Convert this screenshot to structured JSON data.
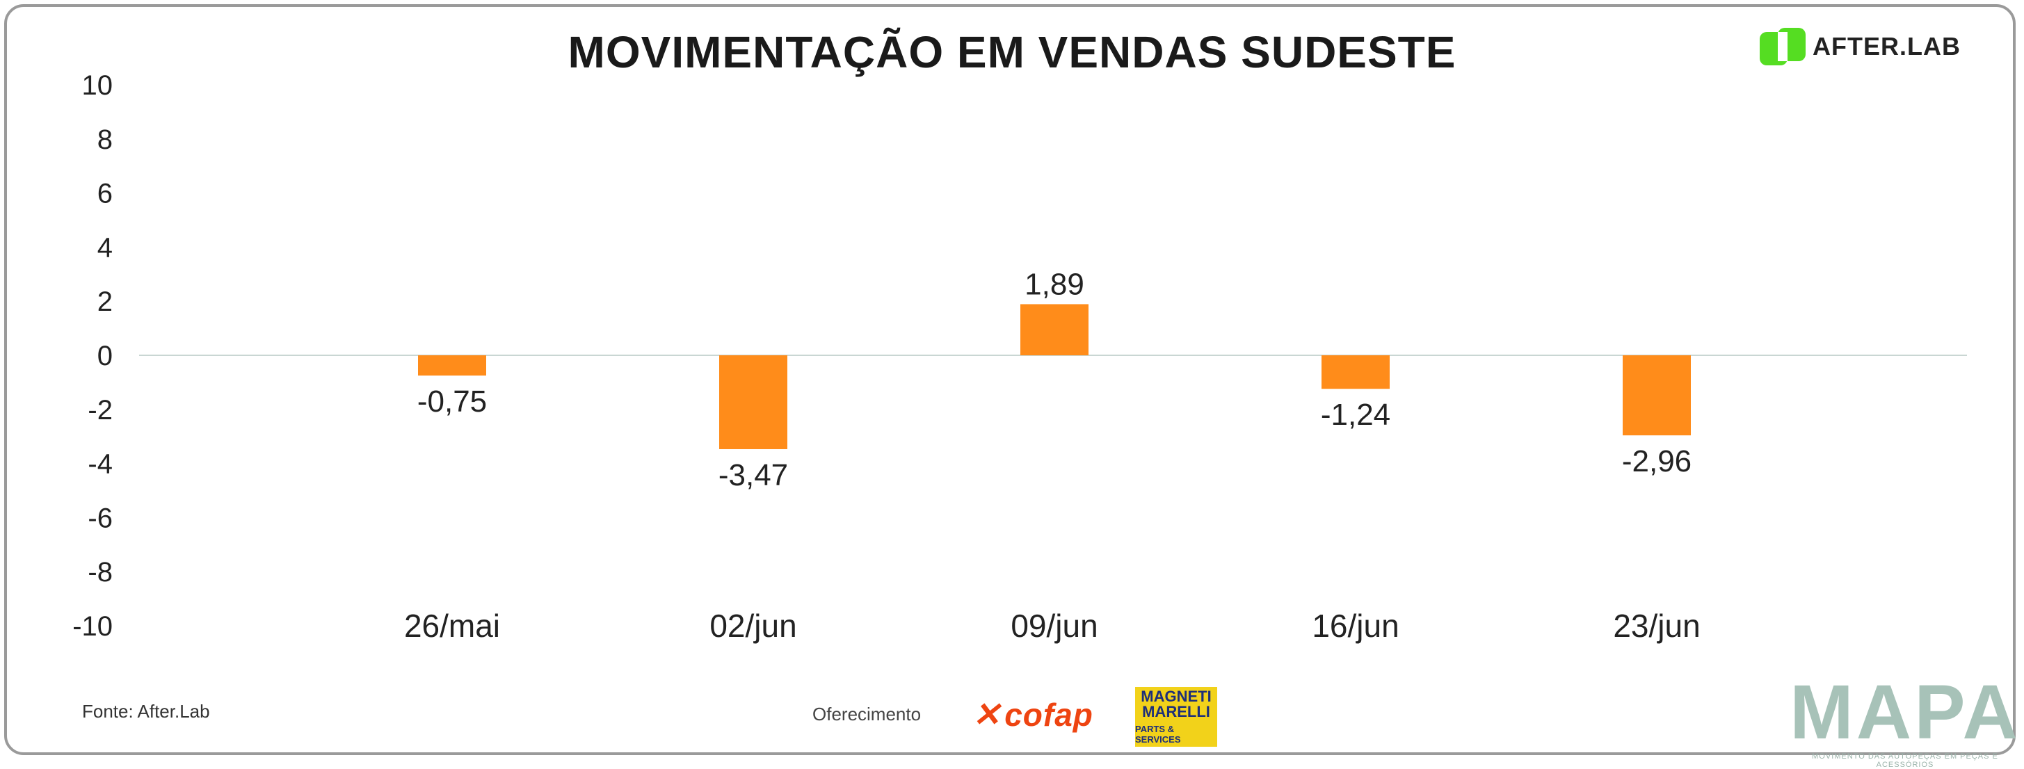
{
  "chart_data": {
    "type": "bar",
    "title": "MOVIMENTAÇÃO EM VENDAS SUDESTE",
    "categories": [
      "26/mai",
      "02/jun",
      "09/jun",
      "16/jun",
      "23/jun"
    ],
    "values": [
      -0.75,
      -3.47,
      1.89,
      -1.24,
      -2.96
    ],
    "value_labels": [
      "-0,75",
      "-3,47",
      "1,89",
      "-1,24",
      "-2,96"
    ],
    "ylim": [
      -10,
      10
    ],
    "yticks": [
      "10",
      "8",
      "6",
      "4",
      "2",
      "0",
      "-2",
      "-4",
      "-6",
      "-8",
      "-10"
    ],
    "xlabel": "",
    "ylabel": "",
    "bar_color": "#ff8c1a",
    "grid": false,
    "legend": "none"
  },
  "brand": {
    "logo_text": "AFTER.LAB",
    "logo_icon": "afterlab-logo-icon",
    "logo_color": "#55dd22"
  },
  "footer": {
    "source": "Fonte: After.Lab",
    "sponsor_label": "Oferecimento",
    "cofap": "cofap",
    "magneti_line1": "MAGNETI MARELLI",
    "magneti_line2": "PARTS & SERVICES",
    "mapa": "MAPA",
    "mapa_tagline": "MOVIMENTO DAS AUTOPEÇAS EM PEÇAS E ACESSÓRIOS"
  }
}
